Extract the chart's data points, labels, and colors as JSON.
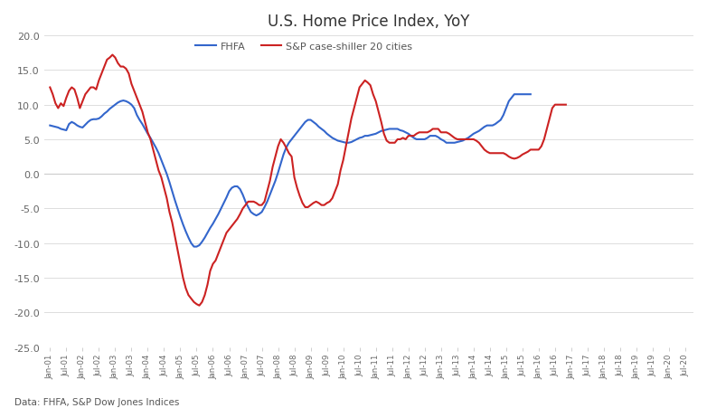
{
  "title": "U.S. Home Price Index, YoY",
  "caption": "Data: FHFA, S&P Dow Jones Indices",
  "ylim": [
    -25.0,
    20.0
  ],
  "yticks": [
    -25.0,
    -20.0,
    -15.0,
    -10.0,
    -5.0,
    0.0,
    5.0,
    10.0,
    15.0,
    20.0
  ],
  "fhfa_color": "#3366cc",
  "sp_color": "#cc2222",
  "background_color": "#ffffff",
  "fxpro_box_color": "#dd1111",
  "fxpro_text_color": "#ffffff",
  "legend_fhfa": "FHFA",
  "legend_sp": "S&P case-shiller 20 cities",
  "fhfa_data": [
    7.0,
    6.9,
    6.8,
    6.7,
    6.5,
    6.4,
    6.3,
    7.2,
    7.5,
    7.3,
    7.0,
    6.8,
    6.7,
    7.1,
    7.5,
    7.8,
    7.9,
    7.9,
    8.0,
    8.3,
    8.7,
    9.0,
    9.4,
    9.7,
    10.0,
    10.3,
    10.5,
    10.6,
    10.5,
    10.3,
    10.0,
    9.5,
    8.5,
    7.8,
    7.2,
    6.5,
    5.8,
    5.2,
    4.5,
    3.8,
    3.0,
    2.0,
    1.0,
    0.0,
    -1.2,
    -2.5,
    -3.8,
    -5.0,
    -6.2,
    -7.3,
    -8.3,
    -9.2,
    -10.0,
    -10.5,
    -10.5,
    -10.3,
    -9.8,
    -9.2,
    -8.5,
    -7.8,
    -7.2,
    -6.5,
    -5.8,
    -5.0,
    -4.2,
    -3.4,
    -2.5,
    -2.0,
    -1.8,
    -1.8,
    -2.2,
    -3.0,
    -4.0,
    -4.8,
    -5.5,
    -5.8,
    -6.0,
    -5.8,
    -5.5,
    -4.8,
    -4.0,
    -3.0,
    -2.0,
    -1.0,
    0.2,
    1.5,
    2.8,
    3.8,
    4.5,
    5.0,
    5.5,
    6.0,
    6.5,
    7.0,
    7.5,
    7.8,
    7.8,
    7.5,
    7.2,
    6.8,
    6.5,
    6.2,
    5.8,
    5.5,
    5.2,
    5.0,
    4.8,
    4.7,
    4.6,
    4.5,
    4.5,
    4.6,
    4.8,
    5.0,
    5.2,
    5.3,
    5.5,
    5.5,
    5.6,
    5.7,
    5.8,
    6.0,
    6.2,
    6.3,
    6.4,
    6.5,
    6.5,
    6.5,
    6.5,
    6.3,
    6.2,
    6.0,
    5.8,
    5.5,
    5.2,
    5.0,
    5.0,
    5.0,
    5.0,
    5.2,
    5.5,
    5.5,
    5.5,
    5.3,
    5.0,
    4.8,
    4.5,
    4.5,
    4.5,
    4.5,
    4.6,
    4.7,
    4.8,
    5.0,
    5.2,
    5.5,
    5.8,
    6.0,
    6.2,
    6.5,
    6.8,
    7.0,
    7.0,
    7.0,
    7.2,
    7.5,
    7.8,
    8.5,
    9.5,
    10.5,
    11.0,
    11.5,
    11.5,
    11.5,
    11.5,
    11.5,
    11.5,
    11.5
  ],
  "sp_data": [
    12.5,
    11.5,
    10.2,
    9.5,
    10.2,
    9.8,
    11.0,
    12.0,
    12.5,
    12.2,
    11.0,
    9.5,
    10.5,
    11.5,
    12.0,
    12.5,
    12.5,
    12.2,
    13.5,
    14.5,
    15.5,
    16.5,
    16.8,
    17.2,
    16.8,
    16.0,
    15.5,
    15.5,
    15.2,
    14.5,
    13.0,
    12.0,
    11.0,
    10.0,
    9.0,
    7.5,
    6.0,
    5.0,
    3.5,
    2.0,
    0.5,
    -0.5,
    -2.0,
    -3.5,
    -5.5,
    -7.0,
    -9.0,
    -11.0,
    -13.0,
    -15.0,
    -16.5,
    -17.5,
    -18.0,
    -18.5,
    -18.8,
    -19.0,
    -18.5,
    -17.5,
    -16.0,
    -14.0,
    -13.0,
    -12.5,
    -11.5,
    -10.5,
    -9.5,
    -8.5,
    -8.0,
    -7.5,
    -7.0,
    -6.5,
    -5.8,
    -5.0,
    -4.5,
    -4.0,
    -4.0,
    -4.0,
    -4.2,
    -4.5,
    -4.5,
    -4.0,
    -2.5,
    -1.0,
    1.0,
    2.5,
    4.0,
    5.0,
    4.5,
    3.8,
    3.0,
    2.5,
    -0.5,
    -2.0,
    -3.2,
    -4.2,
    -4.8,
    -4.8,
    -4.5,
    -4.2,
    -4.0,
    -4.2,
    -4.5,
    -4.5,
    -4.2,
    -4.0,
    -3.5,
    -2.5,
    -1.5,
    0.5,
    2.0,
    4.0,
    6.0,
    8.0,
    9.5,
    11.0,
    12.5,
    13.0,
    13.5,
    13.2,
    12.8,
    11.5,
    10.5,
    9.0,
    7.5,
    5.8,
    4.8,
    4.5,
    4.5,
    4.5,
    5.0,
    5.0,
    5.2,
    5.0,
    5.5,
    5.5,
    5.5,
    5.8,
    6.0,
    6.0,
    6.0,
    6.0,
    6.2,
    6.5,
    6.5,
    6.5,
    6.0,
    6.0,
    6.0,
    5.8,
    5.5,
    5.2,
    5.0,
    5.0,
    5.0,
    5.0,
    5.0,
    5.0,
    5.0,
    4.8,
    4.5,
    4.0,
    3.5,
    3.2,
    3.0,
    3.0,
    3.0,
    3.0,
    3.0,
    3.0,
    2.8,
    2.5,
    2.3,
    2.2,
    2.3,
    2.5,
    2.8,
    3.0,
    3.2,
    3.5,
    3.5,
    3.5,
    3.5,
    4.0,
    5.0,
    6.5,
    8.0,
    9.5,
    10.0,
    10.0,
    10.0,
    10.0,
    10.0
  ],
  "x_tick_labels": [
    "Jan-01",
    "Jul-01",
    "Jan-02",
    "Jul-02",
    "Jan-03",
    "Jul-03",
    "Jan-04",
    "Jul-04",
    "Jan-05",
    "Jul-05",
    "Jan-06",
    "Jul-06",
    "Jan-07",
    "Jul-07",
    "Jan-08",
    "Jul-08",
    "Jan-09",
    "Jul-09",
    "Jan-10",
    "Jul-10",
    "Jan-11",
    "Jul-11",
    "Jan-12",
    "Jul-12",
    "Jan-13",
    "Jul-13",
    "Jan-14",
    "Jul-14",
    "Jan-15",
    "Jul-15",
    "Jan-16",
    "Jul-16",
    "Jan-17",
    "Jul-17",
    "Jan-18",
    "Jul-18",
    "Jan-19",
    "Jul-19",
    "Jan-20",
    "Jul-20"
  ],
  "x_tick_positions": [
    0,
    6,
    12,
    18,
    24,
    30,
    36,
    42,
    48,
    54,
    60,
    66,
    72,
    78,
    84,
    90,
    96,
    102,
    108,
    114,
    120,
    126,
    132,
    138,
    144,
    150,
    156,
    162,
    168,
    174,
    180,
    186,
    192,
    198,
    204,
    210,
    216,
    222,
    228,
    234
  ]
}
